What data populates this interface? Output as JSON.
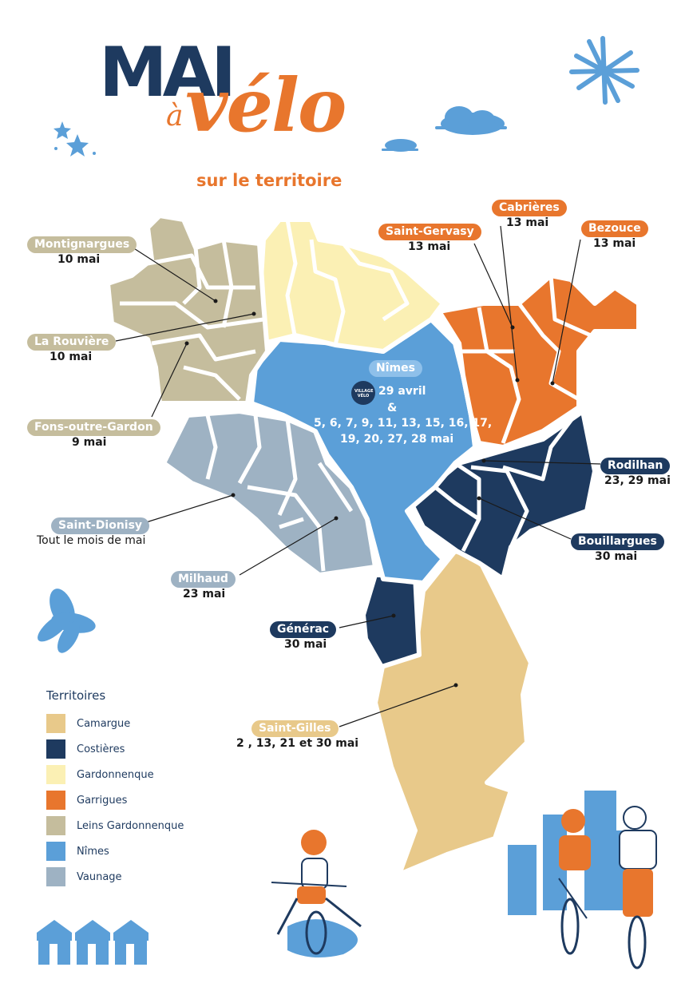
{
  "title": {
    "line1": "MAI",
    "connector": "à",
    "line2": "vélo",
    "subtitle": "sur le territoire"
  },
  "colors": {
    "camargue": "#e8c98a",
    "costieres": "#1e3a5f",
    "gardonnenque": "#fbf0b4",
    "garrigues": "#e8762d",
    "leins": "#c5bd9d",
    "nimes": "#5b9fd8",
    "vaunage": "#9eb2c3"
  },
  "nimes": {
    "label": "Nîmes",
    "badge_line1": "VILLAGE",
    "badge_line2": "VÉLO",
    "date_line1": "29 avril",
    "date_amp": "&",
    "date_line2": "5, 6, 7, 9, 11, 13, 15, 16, 17,",
    "date_line3": "19, 20, 27, 28 mai"
  },
  "communes": [
    {
      "id": "montignargues",
      "name": "Montignargues",
      "date": "10 mai",
      "territory": "leins"
    },
    {
      "id": "la-rouviere",
      "name": "La Rouvière",
      "date": "10 mai",
      "territory": "leins"
    },
    {
      "id": "fons-outre-gardon",
      "name": "Fons-outre-Gardon",
      "date": "9 mai",
      "territory": "leins"
    },
    {
      "id": "saint-dionisy",
      "name": "Saint-Dionisy",
      "date": "Tout le mois de mai",
      "territory": "vaunage"
    },
    {
      "id": "milhaud",
      "name": "Milhaud",
      "date": "23 mai",
      "territory": "vaunage"
    },
    {
      "id": "generac",
      "name": "Générac",
      "date": "30 mai",
      "territory": "costieres"
    },
    {
      "id": "saint-gilles",
      "name": "Saint-Gilles",
      "date": "2 , 13, 21 et 30 mai",
      "territory": "camargue"
    },
    {
      "id": "saint-gervasy",
      "name": "Saint-Gervasy",
      "date": "13 mai",
      "territory": "garrigues"
    },
    {
      "id": "cabrieres",
      "name": "Cabrières",
      "date": "13 mai",
      "territory": "garrigues"
    },
    {
      "id": "bezouce",
      "name": "Bezouce",
      "date": "13 mai",
      "territory": "garrigues"
    },
    {
      "id": "rodilhan",
      "name": "Rodilhan",
      "date": "23, 29 mai",
      "territory": "costieres"
    },
    {
      "id": "bouillargues",
      "name": "Bouillargues",
      "date": "30 mai",
      "territory": "costieres"
    }
  ],
  "legend": {
    "title": "Territoires",
    "items": [
      {
        "label": "Camargue",
        "color": "#e8c98a"
      },
      {
        "label": "Costières",
        "color": "#1e3a5f"
      },
      {
        "label": "Gardonnenque",
        "color": "#fbf0b4"
      },
      {
        "label": "Garrigues",
        "color": "#e8762d"
      },
      {
        "label": "Leins Gardonnenque",
        "color": "#c5bd9d"
      },
      {
        "label": "Nîmes",
        "color": "#5b9fd8"
      },
      {
        "label": "Vaunage",
        "color": "#9eb2c3"
      }
    ]
  }
}
